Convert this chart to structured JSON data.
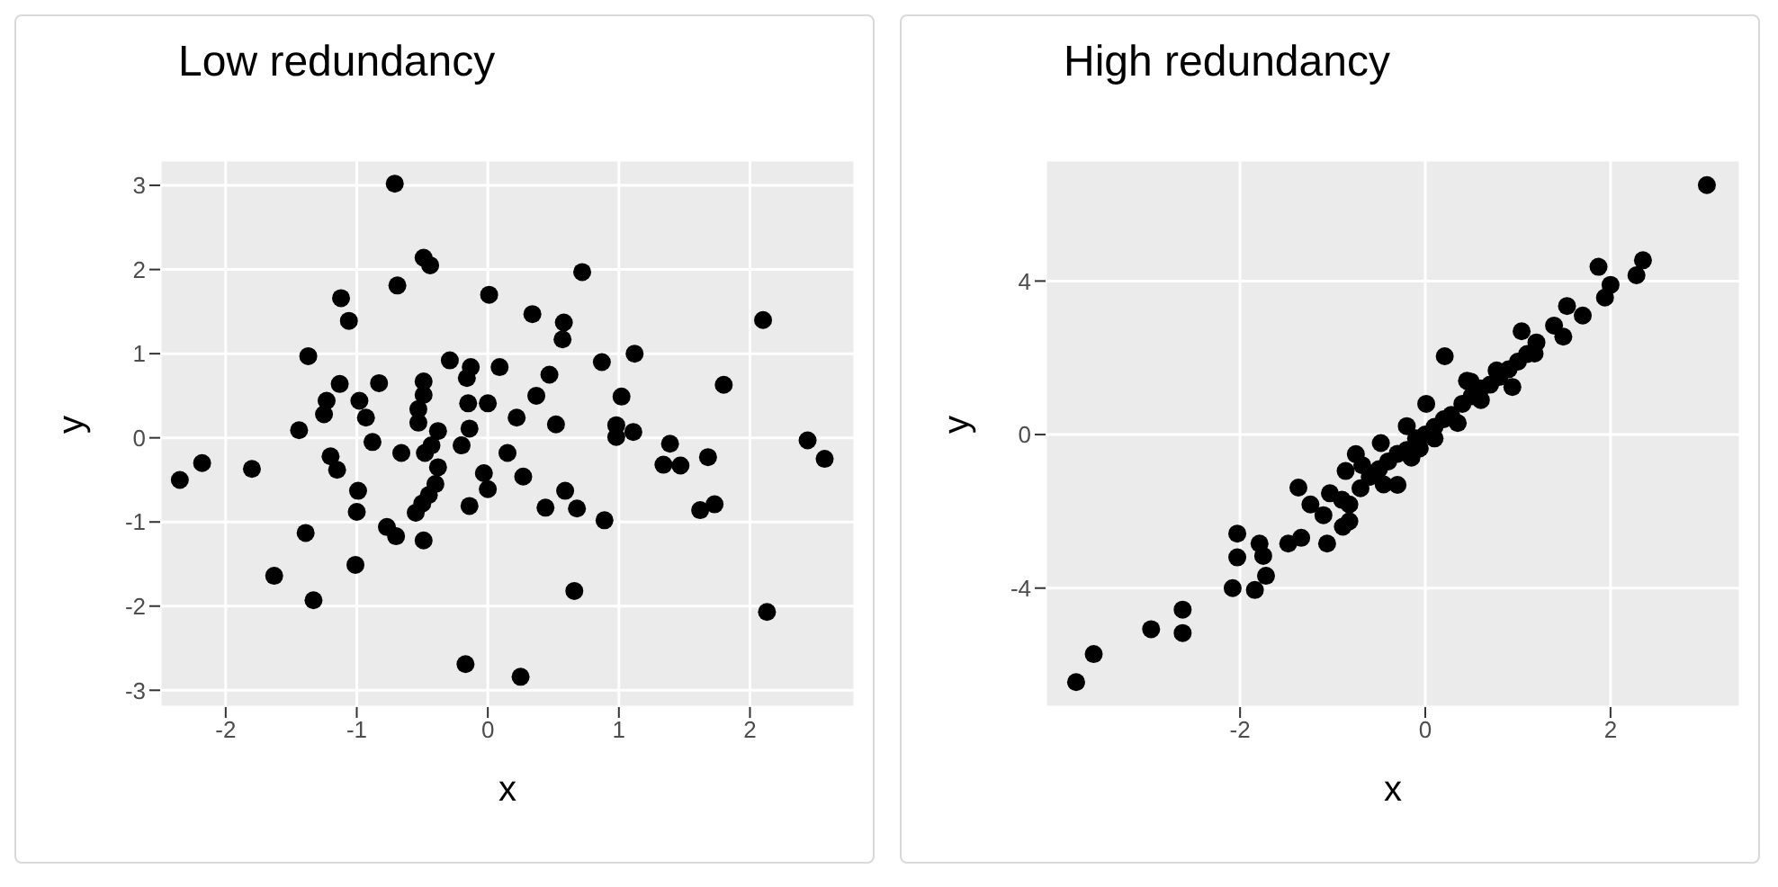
{
  "chart_data": [
    {
      "type": "scatter",
      "title": "Low redundancy",
      "xlabel": "x",
      "ylabel": "y",
      "color": "#000000",
      "marker": "circle",
      "grid": true,
      "xlim": [
        -2.5,
        2.8
      ],
      "ylim": [
        -3.2,
        3.3
      ],
      "xticks": [
        -2,
        -1,
        0,
        1,
        2
      ],
      "yticks": [
        -3,
        -2,
        -1,
        0,
        1,
        2,
        3
      ],
      "x": [
        -0.71,
        -0.49,
        -0.44,
        -0.69,
        0.01,
        -1.12,
        -1.06,
        -1.37,
        -0.29,
        -0.13,
        0.09,
        -1.13,
        -0.83,
        -0.49,
        -0.49,
        -0.53,
        -0.53,
        -1.23,
        -1.25,
        -0.98,
        -0.93,
        -0.88,
        -0.16,
        -0.15,
        0,
        -0.14,
        -0.2,
        -0.38,
        -0.43,
        0.22,
        -1.44,
        -0.66,
        -0.48,
        -0.38,
        -0.4,
        -0.45,
        -0.5,
        -0.55,
        0.15,
        -0.03,
        0,
        0.27,
        -1.2,
        -1.15,
        -2.18,
        -2.35,
        -1.8,
        -0.99,
        -1.0,
        -0.14,
        -1.39,
        -0.77,
        -0.7,
        -0.49,
        -1.01,
        -1.63,
        -1.33,
        -0.17,
        0.25,
        0.72,
        0.34,
        0.58,
        0.57,
        2.1,
        1.12,
        0.87,
        0.47,
        0.37,
        0.52,
        1.8,
        1.02,
        0.98,
        0.98,
        1.11,
        1.39,
        1.34,
        1.47,
        1.68,
        2.44,
        2.57,
        0.59,
        0.44,
        0.68,
        0.89,
        1.62,
        1.73,
        0.66,
        2.13
      ],
      "values": [
        3.02,
        2.14,
        2.05,
        1.81,
        1.7,
        1.66,
        1.39,
        0.97,
        0.92,
        0.84,
        0.84,
        0.64,
        0.65,
        0.67,
        0.51,
        0.34,
        0.18,
        0.44,
        0.28,
        0.44,
        0.24,
        -0.05,
        0.71,
        0.41,
        0.41,
        0.11,
        -0.09,
        0.08,
        -0.09,
        0.24,
        0.09,
        -0.18,
        -0.18,
        -0.35,
        -0.55,
        -0.68,
        -0.78,
        -0.89,
        -0.18,
        -0.42,
        -0.61,
        -0.46,
        -0.22,
        -0.38,
        -0.3,
        -0.5,
        -0.37,
        -0.63,
        -0.88,
        -0.81,
        -1.13,
        -1.06,
        -1.17,
        -1.22,
        -1.51,
        -1.64,
        -1.93,
        -2.69,
        -2.84,
        1.97,
        1.47,
        1.37,
        1.17,
        1.4,
        1.0,
        0.9,
        0.75,
        0.5,
        0.16,
        0.63,
        0.49,
        0.15,
        0.01,
        0.07,
        -0.07,
        -0.32,
        -0.33,
        -0.23,
        -0.03,
        -0.25,
        -0.63,
        -0.83,
        -0.84,
        -0.98,
        -0.86,
        -0.79,
        -1.82,
        -2.07
      ]
    },
    {
      "type": "scatter",
      "title": "High redundancy",
      "xlabel": "x",
      "ylabel": "y",
      "color": "#000000",
      "marker": "circle",
      "grid": true,
      "xlim": [
        -4.1,
        3.4
      ],
      "ylim": [
        -7.1,
        7.15
      ],
      "xticks": [
        -2,
        0,
        2
      ],
      "yticks": [
        -4,
        0,
        4
      ],
      "x": [
        -3.77,
        -3.58,
        -2.96,
        -2.62,
        -2.62,
        -2.08,
        -1.84,
        -1.72,
        -2.03,
        -2.03,
        -1.79,
        -1.75,
        -1.48,
        -1.34,
        -1.37,
        -1.06,
        -1.24,
        -1.03,
        -0.86,
        -0.75,
        -0.82,
        3.04,
        2.35,
        2.28,
        1.87,
        1.94,
        1.53,
        1.39,
        1.49,
        1.04,
        1.18,
        0.94,
        0.77,
        0.21,
        0.49,
        0.28,
        0.01,
        -0.2,
        -0.06,
        -0.48,
        -0.3,
        -0.68,
        -0.82,
        -0.89,
        -0.6,
        -0.5,
        -0.4,
        -0.3,
        -0.2,
        -0.1,
        0,
        0.1,
        0.2,
        0.4,
        0.5,
        0.6,
        0.7,
        0.8,
        0.9,
        1.0,
        1.1,
        -0.7,
        -0.9,
        -1.1,
        -0.45,
        0.35,
        0.6,
        1.7,
        2.0,
        1.2,
        -0.15,
        0.1,
        0.45
      ],
      "values": [
        -6.45,
        -5.72,
        -5.07,
        -4.56,
        -5.17,
        -4.0,
        -4.05,
        -3.68,
        -2.58,
        -3.2,
        -2.84,
        -3.16,
        -2.84,
        -2.69,
        -1.38,
        -2.84,
        -1.82,
        -1.53,
        -0.95,
        -0.51,
        -2.26,
        6.5,
        4.54,
        4.15,
        4.37,
        3.57,
        3.35,
        2.84,
        2.55,
        2.69,
        2.11,
        1.24,
        1.67,
        2.04,
        1.38,
        0.51,
        0.8,
        0.22,
        -0.36,
        -0.22,
        -1.31,
        -0.8,
        -1.82,
        -2.4,
        -1.1,
        -0.9,
        -0.7,
        -0.5,
        -0.4,
        -0.1,
        0,
        0.2,
        0.4,
        0.8,
        1.0,
        1.2,
        1.3,
        1.5,
        1.7,
        1.9,
        2.1,
        -1.4,
        -1.7,
        -2.1,
        -1.3,
        0.3,
        0.9,
        3.1,
        3.9,
        2.4,
        -0.6,
        -0.1,
        1.4
      ]
    }
  ]
}
